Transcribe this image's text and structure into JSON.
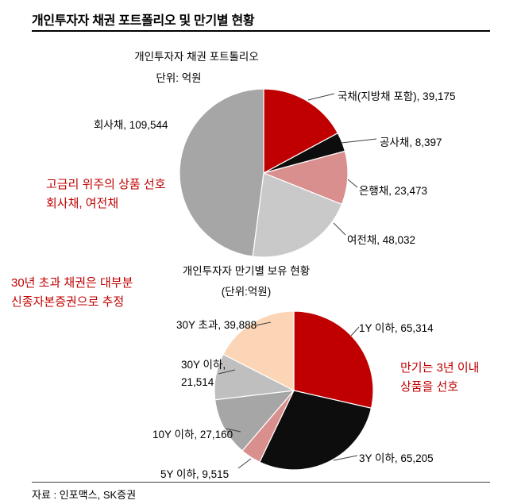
{
  "page": {
    "title": "개인투자자 채권 포트폴리오 및 만기별 현황",
    "source": "자료 : 인포맥스, SK증권"
  },
  "colors": {
    "accent_red": "#c00000",
    "black_slice": "#0d0d0d",
    "pink_slice": "#d98f8d",
    "light_gray_slice": "#c9c9c9",
    "gray_slice": "#a6a6a6",
    "lighter_gray_slice": "#bfbfbf",
    "peach_slice": "#fbd5b5"
  },
  "annotations": {
    "portfolio": {
      "line1": "고금리 위주의 상품 선호",
      "line2": "회사채, 여전채"
    },
    "maturity_left": {
      "line1": "30년 초과 채권은 대부분",
      "line2": "신종자본증권으로 추정"
    },
    "maturity_right": {
      "line1": "만기는 3년 이내",
      "line2": "상품을 선호"
    }
  },
  "chart_data": [
    {
      "type": "pie",
      "title": "개인투자자 채권 포트톨리오",
      "unit_label": "단위: 억원",
      "legend_position": "around",
      "slices": [
        {
          "label": "국채(지방채 포함)",
          "value": 39175,
          "display": "국채(지방채 포함), 39,175",
          "color": "#c00000"
        },
        {
          "label": "공사채",
          "value": 8397,
          "display": "공사채, 8,397",
          "color": "#0d0d0d"
        },
        {
          "label": "은행채",
          "value": 23473,
          "display": "은행채, 23,473",
          "color": "#d98f8d"
        },
        {
          "label": "여전채",
          "value": 48032,
          "display": "여전채, 48,032",
          "color": "#c9c9c9"
        },
        {
          "label": "회사채",
          "value": 109544,
          "display": "회사채, 109,544",
          "color": "#a6a6a6"
        }
      ]
    },
    {
      "type": "pie",
      "title": "개인투자자 만기별 보유 현황",
      "unit_label": "(단위:억원)",
      "legend_position": "around",
      "slices": [
        {
          "label": "1Y 이하",
          "value": 65314,
          "display": "1Y 이하, 65,314",
          "color": "#c00000"
        },
        {
          "label": "3Y 이하",
          "value": 65205,
          "display": "3Y 이하, 65,205",
          "color": "#0d0d0d"
        },
        {
          "label": "5Y 이하",
          "value": 9515,
          "display": "5Y 이하, 9,515",
          "color": "#d98f8d"
        },
        {
          "label": "10Y 이하",
          "value": 27160,
          "display": "10Y 이하, 27,160",
          "color": "#a6a6a6"
        },
        {
          "label": "30Y 이하",
          "value": 21514,
          "display": "30Y 이하, 21,514",
          "display_line1": "30Y 이하,",
          "display_line2": "21,514",
          "color": "#bfbfbf"
        },
        {
          "label": "30Y 초과",
          "value": 39888,
          "display": "30Y 초과, 39,888",
          "color": "#fbd5b5"
        }
      ]
    }
  ]
}
